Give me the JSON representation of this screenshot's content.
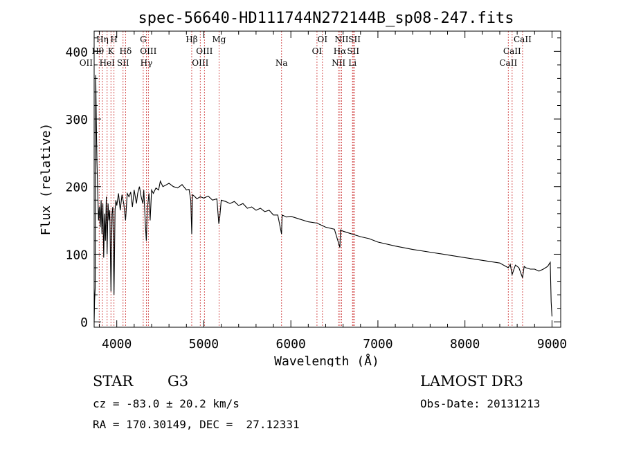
{
  "chart_data": {
    "type": "line",
    "title": "spec-56640-HD111744N272144B_sp08-247.fits",
    "xlabel": "Wavelength (Å)",
    "ylabel": "Flux (relative)",
    "xlim": [
      3740,
      9100
    ],
    "ylim": [
      -8,
      430
    ],
    "xticks": [
      4000,
      5000,
      6000,
      7000,
      8000,
      9000
    ],
    "yticks": [
      0,
      100,
      200,
      300,
      400
    ],
    "series": [
      {
        "name": "spectrum",
        "x": [
          3740,
          3745,
          3752,
          3758,
          3765,
          3772,
          3780,
          3790,
          3800,
          3810,
          3820,
          3830,
          3840,
          3850,
          3860,
          3870,
          3880,
          3889,
          3900,
          3910,
          3920,
          3933,
          3945,
          3955,
          3968,
          3980,
          3990,
          4000,
          4020,
          4040,
          4060,
          4080,
          4101,
          4120,
          4140,
          4160,
          4180,
          4200,
          4226,
          4240,
          4260,
          4280,
          4300,
          4310,
          4330,
          4340,
          4350,
          4370,
          4383,
          4400,
          4420,
          4450,
          4480,
          4500,
          4530,
          4560,
          4600,
          4650,
          4700,
          4750,
          4800,
          4830,
          4850,
          4861,
          4870,
          4890,
          4920,
          4960,
          5000,
          5050,
          5100,
          5150,
          5172,
          5183,
          5200,
          5250,
          5300,
          5350,
          5400,
          5450,
          5500,
          5550,
          5600,
          5650,
          5700,
          5750,
          5800,
          5850,
          5893,
          5900,
          5950,
          6000,
          6100,
          6200,
          6300,
          6400,
          6500,
          6563,
          6570,
          6600,
          6700,
          6800,
          6900,
          7000,
          7200,
          7400,
          7600,
          7800,
          8000,
          8200,
          8400,
          8498,
          8520,
          8542,
          8580,
          8620,
          8662,
          8680,
          8700,
          8750,
          8800,
          8850,
          8900,
          8950,
          8980,
          8990,
          9000
        ],
        "values": [
          0,
          30,
          50,
          365,
          300,
          240,
          200,
          150,
          170,
          140,
          180,
          130,
          175,
          95,
          160,
          120,
          185,
          100,
          175,
          150,
          165,
          45,
          160,
          170,
          40,
          165,
          180,
          172,
          190,
          165,
          188,
          175,
          150,
          190,
          185,
          192,
          170,
          195,
          175,
          190,
          200,
          185,
          175,
          195,
          140,
          120,
          165,
          190,
          150,
          195,
          190,
          198,
          195,
          208,
          200,
          202,
          205,
          200,
          198,
          203,
          195,
          196,
          180,
          130,
          188,
          186,
          182,
          185,
          183,
          186,
          180,
          182,
          145,
          155,
          180,
          178,
          175,
          178,
          172,
          175,
          168,
          170,
          165,
          168,
          163,
          165,
          158,
          158,
          130,
          158,
          155,
          156,
          152,
          148,
          146,
          140,
          137,
          110,
          136,
          134,
          130,
          126,
          123,
          118,
          112,
          107,
          103,
          99,
          95,
          91,
          87,
          80,
          85,
          70,
          84,
          80,
          65,
          82,
          80,
          78,
          78,
          75,
          78,
          82,
          88,
          30,
          8
        ]
      }
    ],
    "lines": [
      {
        "wl": 3727,
        "label": "OII",
        "row": 3,
        "dx": -10
      },
      {
        "wl": 3798,
        "label": "Hθ",
        "row": 2,
        "dx": -2
      },
      {
        "wl": 3835,
        "label": "Hη",
        "row": 1,
        "dx": 0
      },
      {
        "wl": 3889,
        "label": "HeI",
        "row": 3,
        "dx": 0
      },
      {
        "wl": 3933,
        "label": "K",
        "row": 2,
        "dx": 0
      },
      {
        "wl": 3968,
        "label": "H",
        "row": 1,
        "dx": 0
      },
      {
        "wl": 4072,
        "label": "SII",
        "row": 3,
        "dx": 0
      },
      {
        "wl": 4101,
        "label": "Hδ",
        "row": 2,
        "dx": 0
      },
      {
        "wl": 4304,
        "label": "G",
        "row": 1,
        "dx": 0
      },
      {
        "wl": 4340,
        "label": "Hγ",
        "row": 3,
        "dx": 0
      },
      {
        "wl": 4363,
        "label": "OIII",
        "row": 2,
        "dx": 0
      },
      {
        "wl": 4861,
        "label": "Hβ",
        "row": 1,
        "dx": 0
      },
      {
        "wl": 4959,
        "label": "OIII",
        "row": 3,
        "dx": 0
      },
      {
        "wl": 5007,
        "label": "OIII",
        "row": 2,
        "dx": 0
      },
      {
        "wl": 5175,
        "label": "Mg",
        "row": 1,
        "dx": 0
      },
      {
        "wl": 5893,
        "label": "Na",
        "row": 3,
        "dx": 0
      },
      {
        "wl": 6300,
        "label": "OI",
        "row": 2,
        "dx": 0
      },
      {
        "wl": 6363,
        "label": "OI",
        "row": 1,
        "dx": 0
      },
      {
        "wl": 6548,
        "label": "NII",
        "row": 3,
        "dx": 0
      },
      {
        "wl": 6563,
        "label": "Hα",
        "row": 2,
        "dx": 0
      },
      {
        "wl": 6583,
        "label": "NII",
        "row": 1,
        "dx": 0
      },
      {
        "wl": 6708,
        "label": "Li",
        "row": 3,
        "dx": 0
      },
      {
        "wl": 6716,
        "label": "SII",
        "row": 2,
        "dx": 0
      },
      {
        "wl": 6731,
        "label": "SII",
        "row": 1,
        "dx": 0
      },
      {
        "wl": 8498,
        "label": "CaII",
        "row": 3,
        "dx": 0
      },
      {
        "wl": 8542,
        "label": "CaII",
        "row": 2,
        "dx": 0
      },
      {
        "wl": 8662,
        "label": "CaII",
        "row": 1,
        "dx": 0
      }
    ],
    "line_color": "#d04040"
  },
  "info": {
    "object_class": "STAR",
    "subclass": "G3",
    "survey": "LAMOST DR3",
    "cz": "cz = -83.0 ± 20.2 km/s",
    "obs_date": "Obs-Date: 20131213",
    "coords": "RA = 170.30149, DEC =  27.12331"
  }
}
